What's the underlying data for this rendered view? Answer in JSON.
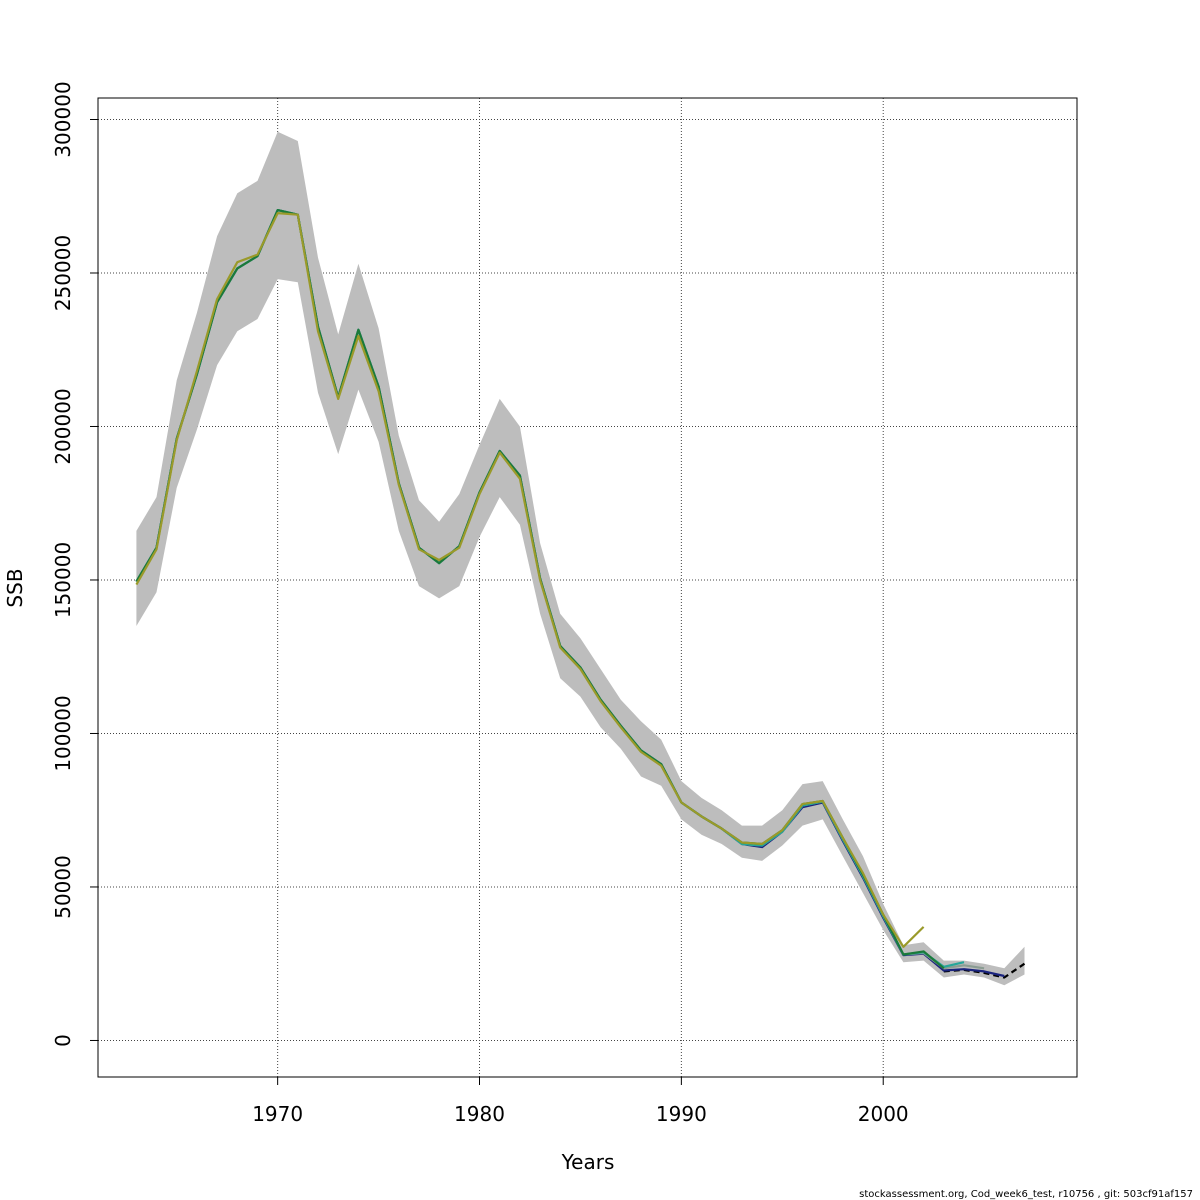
{
  "chart_data": {
    "type": "line",
    "title": "",
    "xlabel": "Years",
    "ylabel": "SSB",
    "xlim": [
      1961.1,
      2009.6
    ],
    "ylim": [
      -11900,
      307000
    ],
    "x_ticks": [
      1970,
      1980,
      1990,
      2000
    ],
    "y_ticks": [
      0,
      50000,
      100000,
      150000,
      200000,
      250000,
      300000
    ],
    "x_tick_labels": [
      "1970",
      "1980",
      "1990",
      "2000"
    ],
    "y_tick_labels": [
      "0",
      "50000",
      "100000",
      "150000",
      "200000",
      "250000",
      "300000"
    ],
    "grid": true,
    "confidence_band": {
      "x": [
        1963,
        1964,
        1965,
        1966,
        1967,
        1968,
        1969,
        1970,
        1971,
        1972,
        1973,
        1974,
        1975,
        1976,
        1977,
        1978,
        1979,
        1980,
        1981,
        1982,
        1983,
        1984,
        1985,
        1986,
        1987,
        1988,
        1989,
        1990,
        1991,
        1992,
        1993,
        1994,
        1995,
        1996,
        1997,
        1998,
        1999,
        2000,
        2001,
        2002,
        2003,
        2004,
        2005,
        2006,
        2007
      ],
      "lower": [
        135000,
        146000,
        180000,
        199000,
        220000,
        231000,
        235000,
        248000,
        247000,
        211000,
        191000,
        212000,
        195000,
        166000,
        148000,
        144000,
        148000,
        164000,
        177000,
        168000,
        139000,
        118000,
        112000,
        102000,
        95000,
        86000,
        83000,
        72000,
        67000,
        64000,
        59500,
        58500,
        63500,
        70000,
        72000,
        60000,
        48000,
        36000,
        25500,
        26000,
        20500,
        21500,
        20500,
        18000,
        21500
      ],
      "upper": [
        166000,
        177000,
        215000,
        237000,
        262000,
        276000,
        280000,
        296000,
        293000,
        255000,
        230000,
        253000,
        232000,
        197000,
        176000,
        169000,
        178000,
        194000,
        209000,
        200000,
        162000,
        139000,
        131000,
        121000,
        111000,
        104000,
        98000,
        84500,
        79000,
        75000,
        70000,
        70000,
        75000,
        83500,
        84500,
        72000,
        60000,
        44500,
        31000,
        32000,
        26000,
        26000,
        25000,
        23500,
        30500
      ]
    },
    "series": [
      {
        "color": "#000000",
        "dashed": true,
        "x": [
          2003,
          2004,
          2005,
          2006,
          2007
        ],
        "values": [
          22500,
          23000,
          22000,
          20500,
          25000
        ]
      },
      {
        "color": "#1a237e",
        "x": [
          1963,
          1964,
          1965,
          1966,
          1967,
          1968,
          1969,
          1970,
          1971,
          1972,
          1973,
          1974,
          1975,
          1976,
          1977,
          1978,
          1979,
          1980,
          1981,
          1982,
          1983,
          1984,
          1985,
          1986,
          1987,
          1988,
          1989,
          1990,
          1991,
          1992,
          1993,
          1994,
          1995,
          1996,
          1997,
          1998,
          1999,
          2000,
          2001,
          2002,
          2003,
          2004,
          2005,
          2006
        ],
        "values": [
          149500,
          160500,
          196000,
          217000,
          240500,
          251500,
          255500,
          270500,
          269000,
          232500,
          209500,
          231500,
          213000,
          181500,
          160500,
          155500,
          161000,
          178500,
          192000,
          184000,
          150500,
          128500,
          121500,
          111000,
          102500,
          94500,
          90000,
          77500,
          73000,
          69000,
          64000,
          63000,
          68000,
          76000,
          77500,
          65000,
          53000,
          40000,
          27800,
          28300,
          22800,
          23200,
          22500,
          21000
        ]
      },
      {
        "color": "#8a9c92",
        "x": [
          1963,
          1964,
          1965,
          1966,
          1967,
          1968,
          1969,
          1970,
          1971,
          1972,
          1973,
          1974,
          1975,
          1976,
          1977,
          1978,
          1979,
          1980,
          1981,
          1982,
          1983,
          1984,
          1985,
          1986,
          1987,
          1988,
          1989,
          1990,
          1991,
          1992,
          1993,
          1994,
          1995,
          1996,
          1997,
          1998,
          1999,
          2000,
          2001,
          2002,
          2003,
          2004,
          2005
        ],
        "values": [
          149500,
          160500,
          196000,
          217000,
          240500,
          251500,
          255500,
          270500,
          269000,
          232500,
          209500,
          231500,
          213000,
          181500,
          160500,
          155500,
          161000,
          178500,
          192000,
          184000,
          150500,
          128500,
          121500,
          111000,
          102500,
          94500,
          90000,
          77500,
          73000,
          69000,
          64000,
          63500,
          68000,
          76500,
          77800,
          65500,
          53500,
          40500,
          28000,
          28500,
          23500,
          24500,
          23500
        ]
      },
      {
        "color": "#26a69a",
        "x": [
          1963,
          1964,
          1965,
          1966,
          1967,
          1968,
          1969,
          1970,
          1971,
          1972,
          1973,
          1974,
          1975,
          1976,
          1977,
          1978,
          1979,
          1980,
          1981,
          1982,
          1983,
          1984,
          1985,
          1986,
          1987,
          1988,
          1989,
          1990,
          1991,
          1992,
          1993,
          1994,
          1995,
          1996,
          1997,
          1998,
          1999,
          2000,
          2001,
          2002,
          2003,
          2004
        ],
        "values": [
          149500,
          160500,
          196000,
          217000,
          240500,
          251500,
          255500,
          270500,
          269000,
          232500,
          209500,
          231500,
          213000,
          181500,
          160500,
          155500,
          161000,
          178500,
          192000,
          184000,
          150500,
          128500,
          121500,
          111000,
          102500,
          94500,
          90000,
          77500,
          73000,
          69000,
          64000,
          63500,
          68000,
          76500,
          77800,
          65500,
          53500,
          40500,
          28000,
          28800,
          24000,
          25500
        ]
      },
      {
        "color": "#1b7a3a",
        "x": [
          1963,
          1964,
          1965,
          1966,
          1967,
          1968,
          1969,
          1970,
          1971,
          1972,
          1973,
          1974,
          1975,
          1976,
          1977,
          1978,
          1979,
          1980,
          1981,
          1982,
          1983,
          1984,
          1985,
          1986,
          1987,
          1988,
          1989,
          1990,
          1991,
          1992,
          1993,
          1994,
          1995,
          1996,
          1997,
          1998,
          1999,
          2000,
          2001,
          2002,
          2003
        ],
        "values": [
          149500,
          160500,
          196000,
          217000,
          240500,
          251500,
          255500,
          270500,
          269000,
          232500,
          209500,
          231500,
          213000,
          181500,
          160500,
          155500,
          161000,
          178500,
          192000,
          184000,
          150500,
          128500,
          121500,
          111000,
          102500,
          94500,
          90000,
          77500,
          73000,
          69000,
          64500,
          64000,
          68500,
          77000,
          78000,
          66000,
          54000,
          41000,
          28000,
          29000,
          23500
        ]
      },
      {
        "color": "#9a9a2a",
        "x": [
          1963,
          1964,
          1965,
          1966,
          1967,
          1968,
          1969,
          1970,
          1971,
          1972,
          1973,
          1974,
          1975,
          1976,
          1977,
          1978,
          1979,
          1980,
          1981,
          1982,
          1983,
          1984,
          1985,
          1986,
          1987,
          1988,
          1989,
          1990,
          1991,
          1992,
          1993,
          1994,
          1995,
          1996,
          1997,
          1998,
          1999,
          2000,
          2001,
          2002
        ],
        "values": [
          148500,
          160000,
          195500,
          218000,
          241500,
          253500,
          256000,
          269500,
          269000,
          231000,
          209000,
          229500,
          211500,
          181000,
          160000,
          156500,
          160500,
          178000,
          191500,
          183000,
          150000,
          128000,
          121000,
          110500,
          102000,
          94000,
          89500,
          77500,
          73000,
          69000,
          64500,
          64000,
          68500,
          77000,
          78000,
          66000,
          54500,
          41000,
          30500,
          37000
        ]
      }
    ]
  },
  "footer": "stockassessment.org, Cod_week6_test, r10756 , git: 503cf91af157"
}
